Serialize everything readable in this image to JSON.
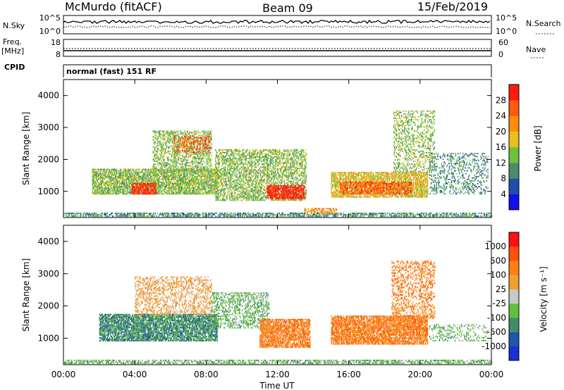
{
  "header": {
    "station": "McMurdo (fitACF)",
    "beam": "Beam 09",
    "date": "15/Feb/2019"
  },
  "status_panels": {
    "nsky_label": "N.Sky",
    "nsky_ticks": [
      "10^5",
      "10^0"
    ],
    "nsearch_label": "N.Search",
    "nsearch_ticks": [
      "10^5",
      "10^0"
    ],
    "freq_label": "Freq.",
    "freq_unit": "[MHz]",
    "freq_ticks": [
      "18",
      "8"
    ],
    "nave_label": "Nave",
    "nave_ticks": [
      "60",
      "0"
    ],
    "cpid_label": "CPID",
    "cpid_value": "normal (fast) 151 RF"
  },
  "chart_data": [
    {
      "type": "heatmap",
      "name": "power",
      "ylabel": "Slant Range [km]",
      "ylim": [
        180,
        4500
      ],
      "yticks": [
        1000,
        2000,
        3000,
        4000
      ],
      "xlim": [
        0,
        24
      ],
      "colorbar": {
        "label": "Power [dB]",
        "ticks": [
          "4",
          "8",
          "12",
          "16",
          "20",
          "24",
          "28"
        ],
        "colors": [
          "#1010ee",
          "#1f4faa",
          "#4c8c6c",
          "#6cc23c",
          "#e8c020",
          "#ff8c10",
          "#ff5a10",
          "#ff1a10"
        ],
        "range": [
          0,
          32
        ]
      },
      "bands": [
        {
          "t0": 0.0,
          "t1": 24.0,
          "r0": 200,
          "r1": 330,
          "level": 2,
          "density": 0.55
        },
        {
          "t0": 1.6,
          "t1": 8.6,
          "r0": 900,
          "r1": 1700,
          "level": 3,
          "density": 0.7
        },
        {
          "t0": 3.8,
          "t1": 5.2,
          "r0": 900,
          "r1": 1250,
          "level": 7,
          "density": 0.75
        },
        {
          "t0": 5.0,
          "t1": 8.3,
          "r0": 1600,
          "r1": 2900,
          "level": 3,
          "density": 0.45
        },
        {
          "t0": 6.2,
          "t1": 8.2,
          "r0": 2200,
          "r1": 2700,
          "level": 6,
          "density": 0.35
        },
        {
          "t0": 8.5,
          "t1": 13.6,
          "r0": 700,
          "r1": 2300,
          "level": 3,
          "density": 0.5
        },
        {
          "t0": 11.4,
          "t1": 13.5,
          "r0": 750,
          "r1": 1200,
          "level": 7,
          "density": 0.75
        },
        {
          "t0": 15.0,
          "t1": 20.4,
          "r0": 800,
          "r1": 1600,
          "level": 4,
          "density": 0.7
        },
        {
          "t0": 15.5,
          "t1": 19.5,
          "r0": 900,
          "r1": 1300,
          "level": 6,
          "density": 0.55
        },
        {
          "t0": 18.5,
          "t1": 20.8,
          "r0": 1600,
          "r1": 3500,
          "level": 3,
          "density": 0.3
        },
        {
          "t0": 20.5,
          "t1": 23.8,
          "r0": 900,
          "r1": 2200,
          "level": 2,
          "density": 0.25
        },
        {
          "t0": 13.5,
          "t1": 15.3,
          "r0": 300,
          "r1": 450,
          "level": 5,
          "density": 0.5
        }
      ]
    },
    {
      "type": "heatmap",
      "name": "velocity",
      "xlabel": "Time UT",
      "ylabel": "Slant Range [km]",
      "ylim": [
        180,
        4500
      ],
      "yticks": [
        1000,
        2000,
        3000,
        4000
      ],
      "xlim": [
        0,
        24
      ],
      "xticks": [
        "00:00",
        "04:00",
        "08:00",
        "12:00",
        "16:00",
        "20:00",
        "00:00"
      ],
      "colorbar": {
        "label": "Velocity [m s⁻¹]",
        "ticks": [
          "1000",
          "500",
          "100",
          "25",
          "-25",
          "-100",
          "-500",
          "-1000"
        ],
        "colors": [
          "#1a2fd6",
          "#1f58a8",
          "#448c68",
          "#60c23a",
          "#c8c8c8",
          "#f0a030",
          "#ff8010",
          "#ff5010",
          "#ff1010"
        ],
        "range": [
          -1200,
          1200
        ]
      },
      "bands": [
        {
          "t0": 0.0,
          "t1": 24.0,
          "r0": 200,
          "r1": 330,
          "level": 3,
          "density": 0.55
        },
        {
          "t0": 2.0,
          "t1": 8.6,
          "r0": 900,
          "r1": 1750,
          "level": 2,
          "density": 0.75
        },
        {
          "t0": 4.0,
          "t1": 8.3,
          "r0": 1700,
          "r1": 2900,
          "level": 5,
          "density": 0.35
        },
        {
          "t0": 8.3,
          "t1": 11.5,
          "r0": 1300,
          "r1": 2400,
          "level": 3,
          "density": 0.4
        },
        {
          "t0": 11.0,
          "t1": 13.8,
          "r0": 700,
          "r1": 1600,
          "level": 6,
          "density": 0.7
        },
        {
          "t0": 15.0,
          "t1": 20.4,
          "r0": 800,
          "r1": 1700,
          "level": 6,
          "density": 0.75
        },
        {
          "t0": 18.4,
          "t1": 20.8,
          "r0": 1600,
          "r1": 3400,
          "level": 6,
          "density": 0.3
        },
        {
          "t0": 20.5,
          "t1": 23.8,
          "r0": 900,
          "r1": 1400,
          "level": 3,
          "density": 0.25
        }
      ]
    }
  ]
}
